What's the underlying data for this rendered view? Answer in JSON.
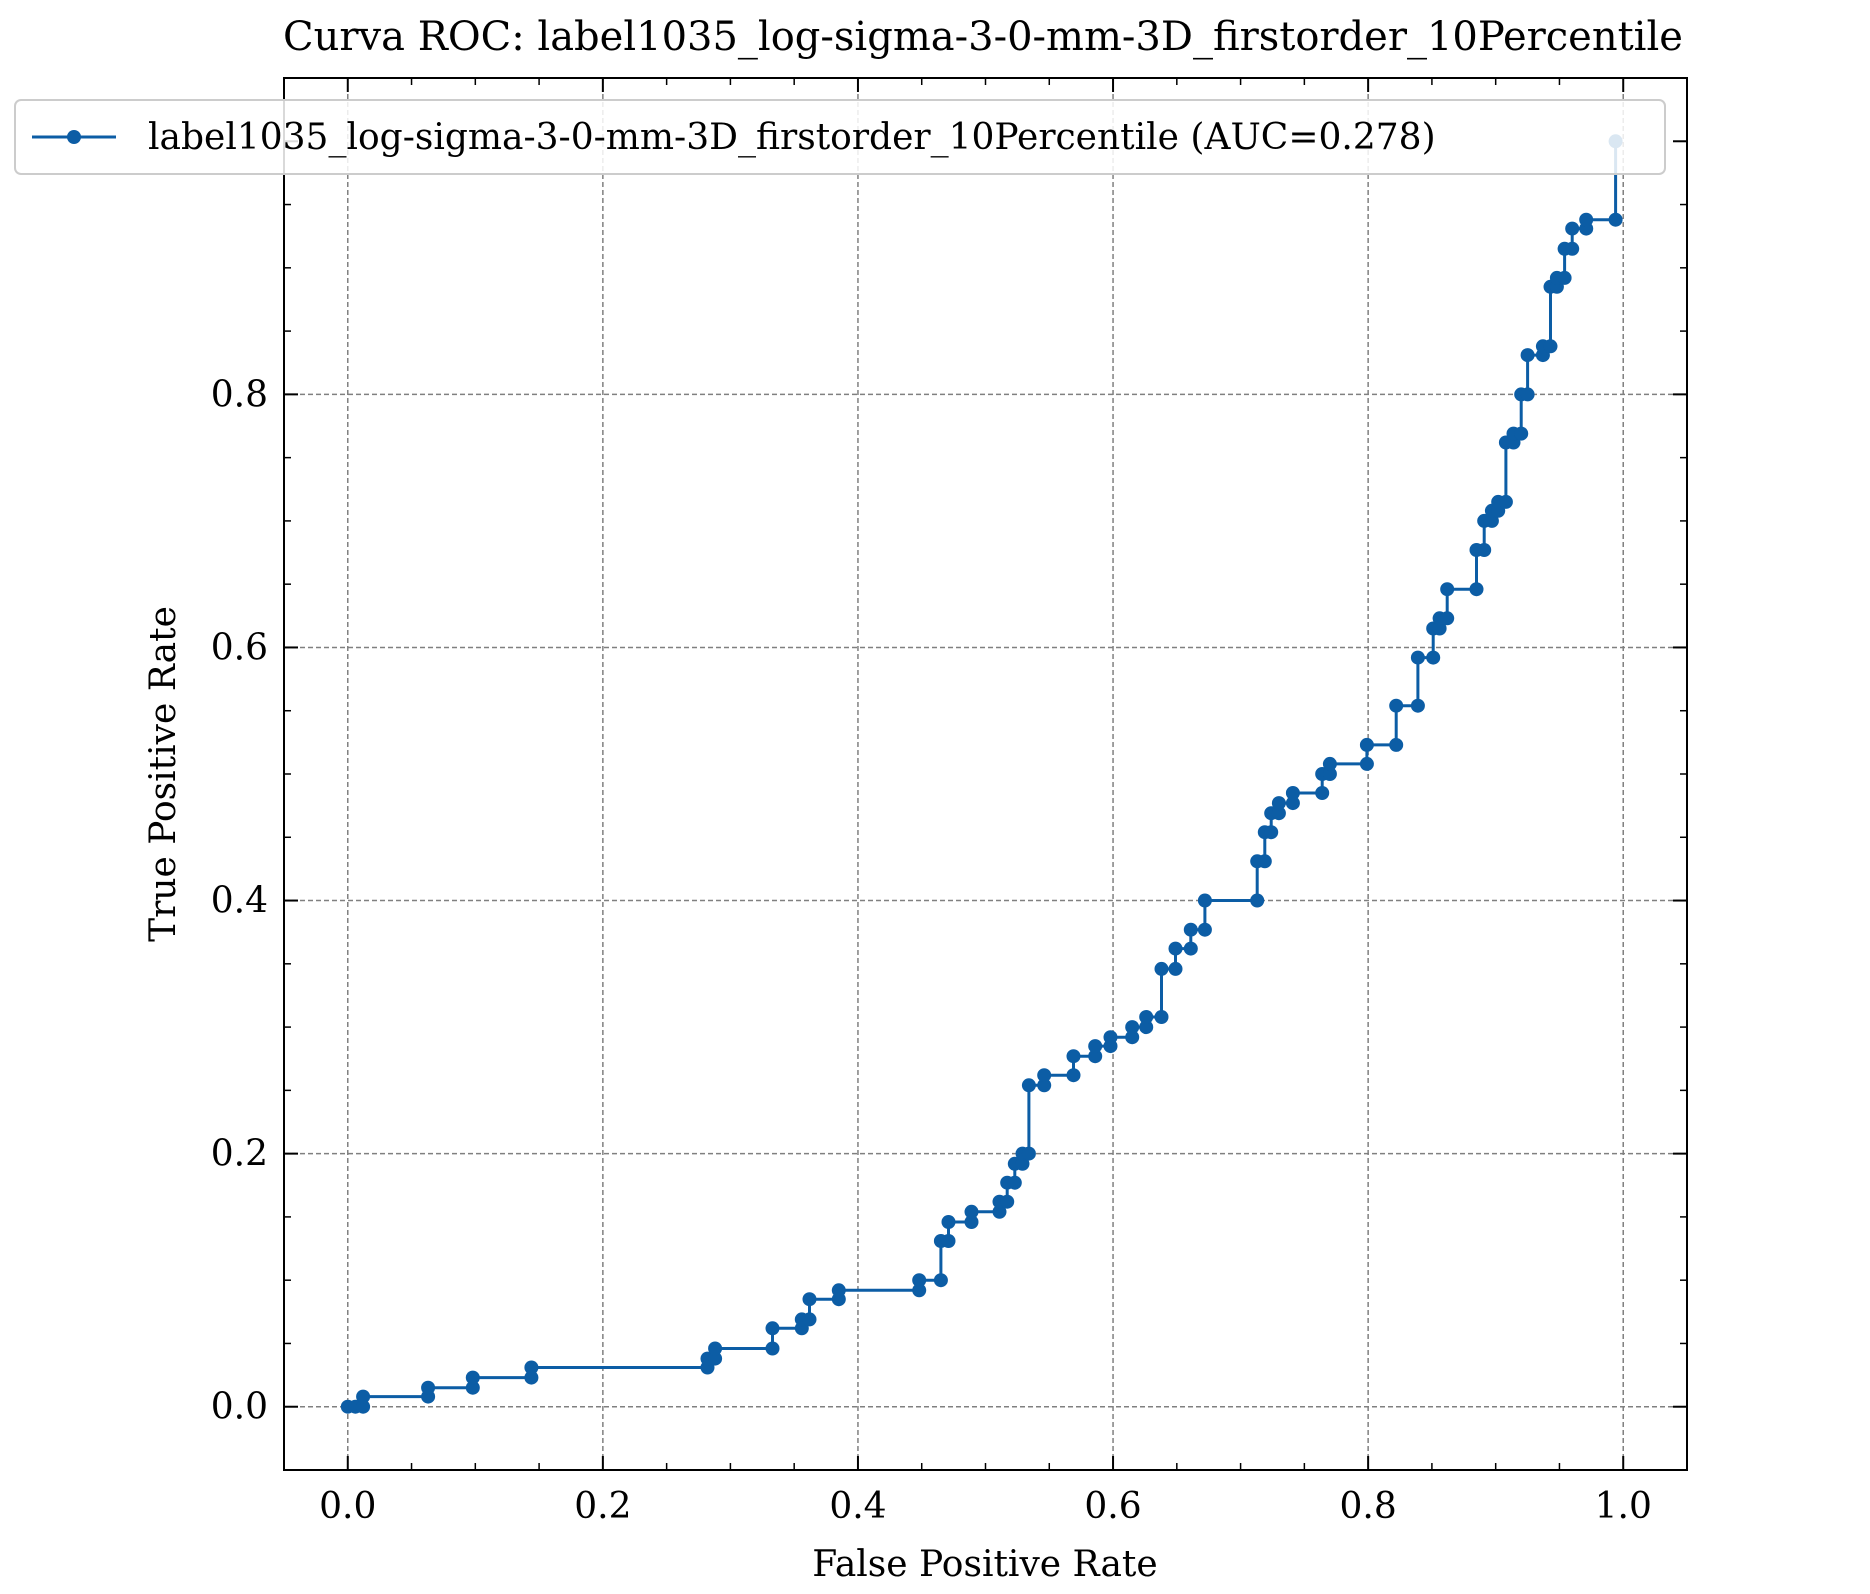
{
  "chart_data": {
    "type": "line",
    "title": "Curva ROC: label1035_log-sigma-3-0-mm-3D_firstorder_10Percentile",
    "xlabel": "False Positive Rate",
    "ylabel": "True Positive Rate",
    "xlim": [
      -0.05,
      1.05
    ],
    "ylim": [
      -0.05,
      1.05
    ],
    "xticks": [
      "0.0",
      "0.2",
      "0.4",
      "0.6",
      "0.8",
      "1.0"
    ],
    "yticks": [
      "0.0",
      "0.2",
      "0.4",
      "0.6",
      "0.8"
    ],
    "grid": true,
    "legend_position": "top-left",
    "series": [
      {
        "name": "label1035_log-sigma-3-0-mm-3D_firstorder_10Percentile (AUC=0.278)",
        "color": "#0C5DA5",
        "marker": "circle",
        "x": [
          0.0,
          0.006,
          0.012,
          0.012,
          0.063,
          0.063,
          0.098,
          0.098,
          0.144,
          0.144,
          0.282,
          0.282,
          0.288,
          0.288,
          0.333,
          0.333,
          0.356,
          0.356,
          0.362,
          0.362,
          0.385,
          0.385,
          0.448,
          0.448,
          0.465,
          0.465,
          0.471,
          0.471,
          0.489,
          0.489,
          0.511,
          0.511,
          0.517,
          0.517,
          0.523,
          0.523,
          0.529,
          0.529,
          0.534,
          0.534,
          0.546,
          0.546,
          0.569,
          0.569,
          0.586,
          0.586,
          0.598,
          0.598,
          0.615,
          0.615,
          0.626,
          0.626,
          0.638,
          0.638,
          0.649,
          0.649,
          0.661,
          0.661,
          0.672,
          0.672,
          0.713,
          0.713,
          0.719,
          0.719,
          0.724,
          0.724,
          0.73,
          0.73,
          0.741,
          0.741,
          0.764,
          0.764,
          0.77,
          0.77,
          0.799,
          0.799,
          0.822,
          0.822,
          0.839,
          0.839,
          0.851,
          0.851,
          0.856,
          0.856,
          0.862,
          0.862,
          0.885,
          0.885,
          0.891,
          0.891,
          0.897,
          0.897,
          0.902,
          0.902,
          0.908,
          0.908,
          0.914,
          0.914,
          0.92,
          0.92,
          0.925,
          0.925,
          0.937,
          0.937,
          0.943,
          0.943,
          0.948,
          0.948,
          0.954,
          0.954,
          0.96,
          0.96,
          0.971,
          0.971,
          0.994,
          0.994
        ],
        "y": [
          0.0,
          0.0,
          0.0,
          0.008,
          0.008,
          0.015,
          0.015,
          0.023,
          0.023,
          0.031,
          0.031,
          0.038,
          0.038,
          0.046,
          0.046,
          0.062,
          0.062,
          0.069,
          0.069,
          0.085,
          0.085,
          0.092,
          0.092,
          0.1,
          0.1,
          0.131,
          0.131,
          0.146,
          0.146,
          0.154,
          0.154,
          0.162,
          0.162,
          0.177,
          0.177,
          0.192,
          0.192,
          0.2,
          0.2,
          0.254,
          0.254,
          0.262,
          0.262,
          0.277,
          0.277,
          0.285,
          0.285,
          0.292,
          0.292,
          0.3,
          0.3,
          0.308,
          0.308,
          0.346,
          0.346,
          0.362,
          0.362,
          0.377,
          0.377,
          0.4,
          0.4,
          0.431,
          0.431,
          0.454,
          0.454,
          0.469,
          0.469,
          0.477,
          0.477,
          0.485,
          0.485,
          0.5,
          0.5,
          0.508,
          0.508,
          0.523,
          0.523,
          0.554,
          0.554,
          0.592,
          0.592,
          0.615,
          0.615,
          0.623,
          0.623,
          0.646,
          0.646,
          0.677,
          0.677,
          0.7,
          0.7,
          0.708,
          0.708,
          0.715,
          0.715,
          0.762,
          0.762,
          0.769,
          0.769,
          0.8,
          0.8,
          0.831,
          0.831,
          0.838,
          0.838,
          0.885,
          0.885,
          0.892,
          0.892,
          0.915,
          0.915,
          0.931,
          0.931,
          0.938,
          0.938,
          1.0
        ]
      }
    ]
  }
}
